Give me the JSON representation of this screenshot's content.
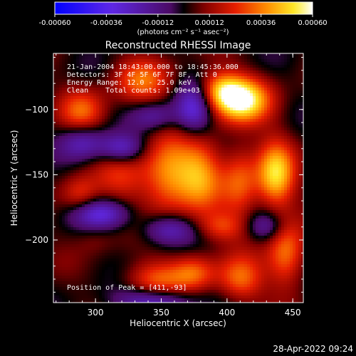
{
  "chart_data": {
    "type": "heatmap",
    "title": "Reconstructed RHESSI Image",
    "xlabel": "Heliocentric X (arcsec)",
    "ylabel": "Heliocentric Y (arcsec)",
    "xlim": [
      268,
      458
    ],
    "ylim": [
      -248,
      -57
    ],
    "xticks": [
      300,
      350,
      400,
      450
    ],
    "yticks": [
      -100,
      -150,
      -200
    ],
    "colorbar": {
      "range": [
        -0.0006,
        0.0006
      ],
      "ticks": [
        "-0.00060",
        "-0.00036",
        "-0.00012",
        "0.00012",
        "0.00036",
        "0.00060"
      ],
      "label": "(photons cm⁻² s⁻¹ asec⁻²)"
    },
    "annotations": [
      "21-Jan-2004 18:43:00.000 to 18:45:36.000",
      "Detectors: 3F 4F 5F 6F 7F 8F, Att 0",
      "Energy Range: 12.0 - 25.0 keV",
      "Clean    Total counts: 1.09e+03"
    ],
    "peak_text": "Position of Peak = [411,-93]",
    "peak": {
      "x": 411,
      "y": -93
    },
    "blobs": [
      {
        "x": 411,
        "y": -93,
        "sx": 15,
        "sy": 12,
        "a": 0.9
      },
      {
        "x": 395,
        "y": -85,
        "sx": 12,
        "sy": 10,
        "a": 0.55
      },
      {
        "x": 355,
        "y": -150,
        "sx": 14,
        "sy": 20,
        "a": 0.62
      },
      {
        "x": 380,
        "y": -150,
        "sx": 12,
        "sy": 20,
        "a": 0.55
      },
      {
        "x": 410,
        "y": -155,
        "sx": 10,
        "sy": 20,
        "a": 0.45
      },
      {
        "x": 437,
        "y": -150,
        "sx": 10,
        "sy": 18,
        "a": 0.75
      },
      {
        "x": 320,
        "y": -150,
        "sx": 14,
        "sy": 16,
        "a": 0.3
      },
      {
        "x": 290,
        "y": -102,
        "sx": 12,
        "sy": 12,
        "a": 0.45
      },
      {
        "x": 335,
        "y": -78,
        "sx": 15,
        "sy": 12,
        "a": 0.45
      },
      {
        "x": 288,
        "y": -165,
        "sx": 10,
        "sy": 10,
        "a": 0.35
      },
      {
        "x": 345,
        "y": -232,
        "sx": 16,
        "sy": 11,
        "a": 0.45
      },
      {
        "x": 375,
        "y": -225,
        "sx": 12,
        "sy": 10,
        "a": 0.45
      },
      {
        "x": 410,
        "y": -230,
        "sx": 12,
        "sy": 12,
        "a": 0.5
      },
      {
        "x": 445,
        "y": -210,
        "sx": 10,
        "sy": 18,
        "a": 0.55
      },
      {
        "x": 395,
        "y": -190,
        "sx": 12,
        "sy": 8,
        "a": 0.35
      },
      {
        "x": 300,
        "y": -200,
        "sx": 10,
        "sy": 8,
        "a": 0.1
      },
      {
        "x": 320,
        "y": -130,
        "sx": 12,
        "sy": 8,
        "a": -0.55
      },
      {
        "x": 290,
        "y": -125,
        "sx": 12,
        "sy": 10,
        "a": -0.45
      },
      {
        "x": 375,
        "y": -100,
        "sx": 10,
        "sy": 14,
        "a": -0.6
      },
      {
        "x": 345,
        "y": -105,
        "sx": 12,
        "sy": 8,
        "a": -0.35
      },
      {
        "x": 305,
        "y": -180,
        "sx": 15,
        "sy": 8,
        "a": -0.55
      },
      {
        "x": 355,
        "y": -192,
        "sx": 14,
        "sy": 8,
        "a": -0.45
      },
      {
        "x": 430,
        "y": -190,
        "sx": 10,
        "sy": 8,
        "a": -0.35
      },
      {
        "x": 345,
        "y": -247,
        "sx": 20,
        "sy": 8,
        "a": -0.6
      }
    ]
  }
}
